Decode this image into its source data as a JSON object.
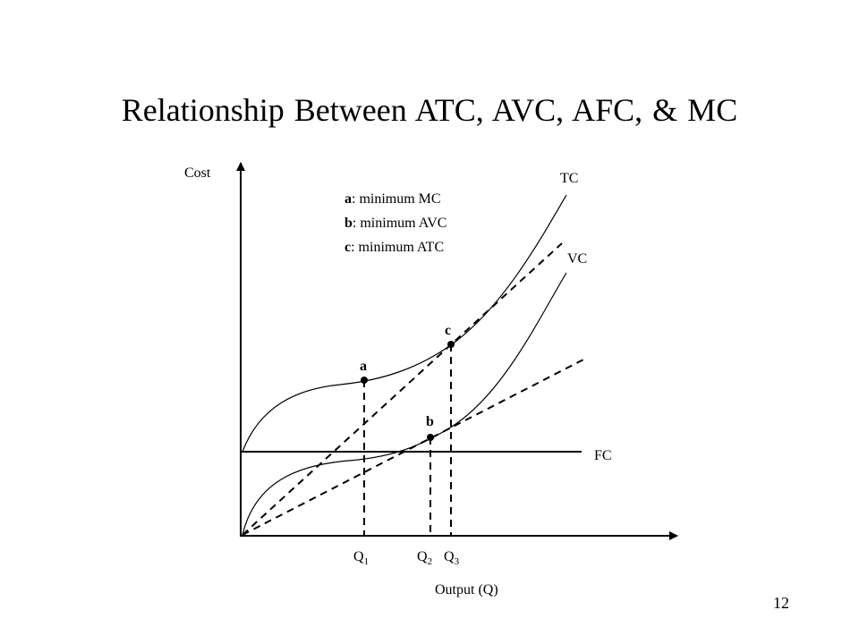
{
  "slide": {
    "title": "Relationship Between ATC, AVC, AFC, & MC",
    "page_number": "12"
  },
  "axes": {
    "y_label": "Cost",
    "x_label": "Output (Q)"
  },
  "curves": {
    "tc": "TC",
    "vc": "VC",
    "fc": "FC"
  },
  "legend": [
    {
      "key": "a",
      "text": ": minimum MC"
    },
    {
      "key": "b",
      "text": ": minimum AVC"
    },
    {
      "key": "c",
      "text": ": minimum ATC"
    }
  ],
  "points": {
    "a": "a",
    "b": "b",
    "c": "c"
  },
  "ticks": [
    {
      "base": "Q",
      "sub": "1"
    },
    {
      "base": "Q",
      "sub": "2"
    },
    {
      "base": "Q",
      "sub": "3"
    }
  ]
}
